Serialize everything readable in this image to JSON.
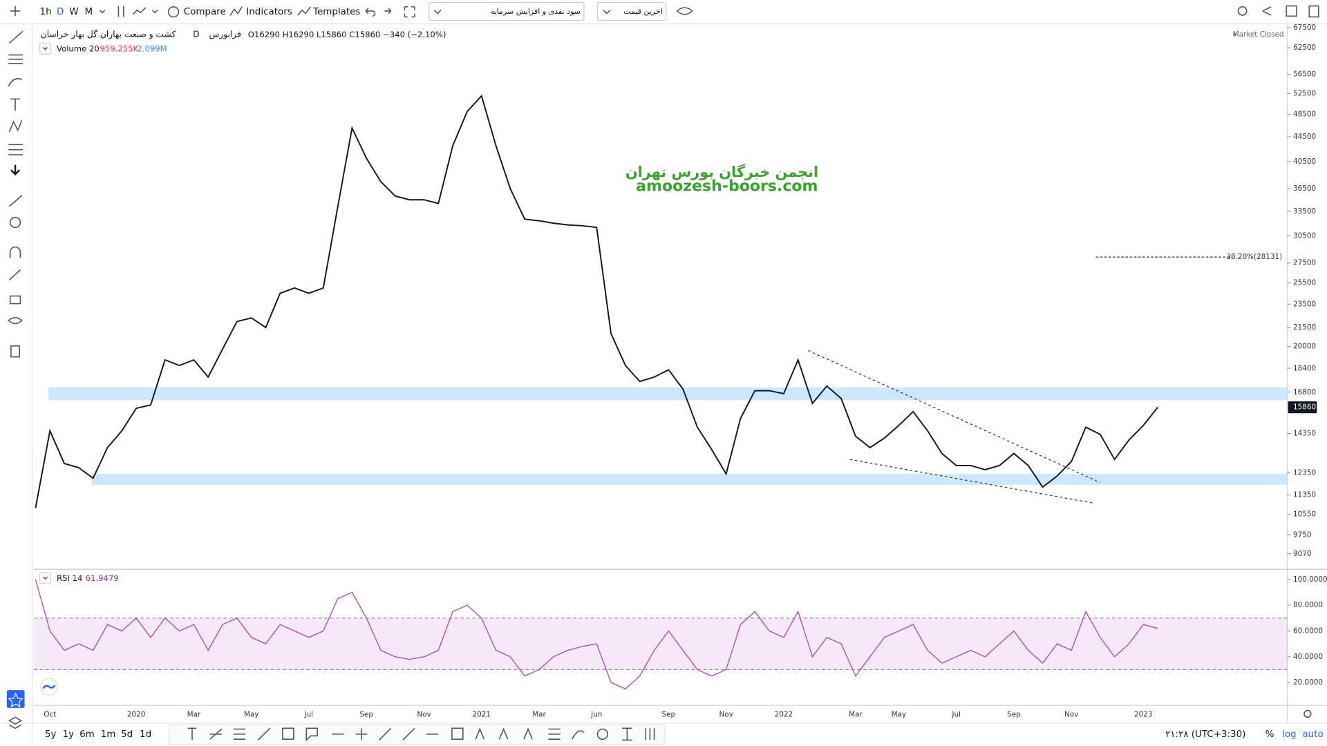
{
  "toolbar": {
    "intervals": [
      "1h",
      "D",
      "W",
      "M"
    ],
    "compare": "Compare",
    "indicators": "Indicators",
    "templates": "Templates",
    "dividend_select": "سود نقدی و افزایش سرمایه",
    "price_select": "اخرین قیمت"
  },
  "legend": {
    "name": "کشت و صنعت بهاران گل بهار خراسان",
    "interval": "D",
    "exchange": "فرابورس",
    "ohlc": [
      {
        "key": "O",
        "value": 16290
      },
      {
        "key": "H",
        "value": 16290
      },
      {
        "key": "L",
        "value": 15860
      },
      {
        "key": "C",
        "value": 15860
      }
    ],
    "change": "−340 (−2.10%)",
    "market_status": "Market Closed",
    "volume": {
      "title": "Volume 20",
      "value": "959.255K",
      "ma": "2.099M"
    }
  },
  "watermark": {
    "line1": "انجمن خبرگان بورس تهران",
    "line2": "amoozesh-boors.com"
  },
  "chart_data": [
    {
      "type": "line",
      "color": "#131722",
      "log": true,
      "categories": [
        null,
        "Oct",
        null,
        null,
        null,
        null,
        null,
        "2020",
        null,
        null,
        null,
        "Mar",
        null,
        null,
        null,
        "May",
        null,
        null,
        null,
        "Jul",
        null,
        null,
        null,
        "Sep",
        null,
        null,
        null,
        "Nov",
        null,
        null,
        null,
        "2021",
        null,
        null,
        null,
        "Mar",
        null,
        null,
        null,
        "Jun",
        null,
        null,
        null,
        null,
        "Sep",
        null,
        null,
        null,
        "Nov",
        null,
        null,
        null,
        "2022",
        null,
        null,
        null,
        null,
        "Mar",
        null,
        null,
        "May",
        null,
        null,
        null,
        "Jul",
        null,
        null,
        null,
        "Sep",
        null,
        null,
        null,
        "Nov",
        null,
        null,
        null,
        null,
        "2023",
        null
      ],
      "values": [
        10800,
        14500,
        12800,
        12600,
        12100,
        13600,
        14500,
        15800,
        16000,
        19000,
        18600,
        19000,
        17800,
        19800,
        22000,
        22300,
        21500,
        24500,
        25000,
        24500,
        25000,
        34000,
        46000,
        41000,
        37500,
        35500,
        35000,
        35000,
        34500,
        43000,
        49000,
        52000,
        43000,
        36500,
        32500,
        32300,
        32000,
        31800,
        31700,
        31500,
        21000,
        18600,
        17500,
        17800,
        18300,
        17000,
        14700,
        13500,
        12300,
        15200,
        16900,
        16900,
        16700,
        19000,
        16100,
        17200,
        16400,
        14200,
        13600,
        14100,
        14800,
        15600,
        14500,
        13300,
        12700,
        12700,
        12500,
        12700,
        13300,
        12700,
        11700,
        12200,
        12900,
        14700,
        14300,
        13000,
        14000,
        14800,
        15860
      ],
      "ylim": [
        8580,
        68500
      ],
      "yticks": [
        67500,
        62500,
        56500,
        52500,
        48500,
        44500,
        40500,
        36500,
        33500,
        30500,
        27500,
        25500,
        23500,
        21500,
        20000,
        18400,
        16800,
        14350,
        12350,
        11350,
        10550,
        9750,
        9070
      ],
      "zones": [
        {
          "start": 0.9,
          "low": 16300,
          "high": 17100
        },
        {
          "start": 3.9,
          "low": 11800,
          "high": 12300
        }
      ],
      "zone_color": "#bbdefb",
      "trendlines": [
        {
          "x": [
            53.7,
            74
          ],
          "y": [
            19700,
            11900
          ]
        },
        {
          "x": [
            56.6,
            73.6
          ],
          "y": [
            13000,
            11000
          ]
        }
      ],
      "fib_level": {
        "start": 73.7,
        "end": 83.2,
        "value": 28131,
        "label": "38.20%(28131)"
      }
    },
    {
      "type": "line",
      "title": "RSI 14",
      "last": 61.9479,
      "color": "#ab47bc",
      "band": [
        30,
        70
      ],
      "band_color": "#9c27b0",
      "values": [
        100,
        60,
        45,
        50,
        45,
        65,
        60,
        70,
        55,
        70,
        60,
        65,
        45,
        65,
        70,
        55,
        50,
        65,
        60,
        55,
        60,
        85,
        90,
        70,
        45,
        40,
        38,
        40,
        45,
        75,
        80,
        70,
        45,
        40,
        25,
        30,
        40,
        45,
        48,
        50,
        20,
        15,
        25,
        45,
        60,
        45,
        30,
        25,
        30,
        65,
        75,
        60,
        55,
        75,
        40,
        55,
        50,
        25,
        40,
        55,
        60,
        65,
        45,
        35,
        40,
        45,
        40,
        50,
        60,
        45,
        35,
        50,
        45,
        75,
        55,
        40,
        50,
        65,
        62
      ],
      "ylim": [
        2.9,
        106.6
      ],
      "yticks": [
        {
          "value": 100,
          "label": "100.0000"
        },
        {
          "value": 80,
          "label": "80.0000"
        },
        {
          "value": 60,
          "label": "60.0000"
        },
        {
          "value": 40,
          "label": "40.0000"
        },
        {
          "value": 20,
          "label": "20.0000"
        }
      ]
    }
  ],
  "bottom_bar": {
    "ranges": [
      "5y",
      "1y",
      "6m",
      "1m",
      "5d",
      "1d"
    ],
    "time": "۲۱:۲۸ (UTC+3:30)",
    "percent": "%",
    "log": "log",
    "auto": "auto"
  }
}
